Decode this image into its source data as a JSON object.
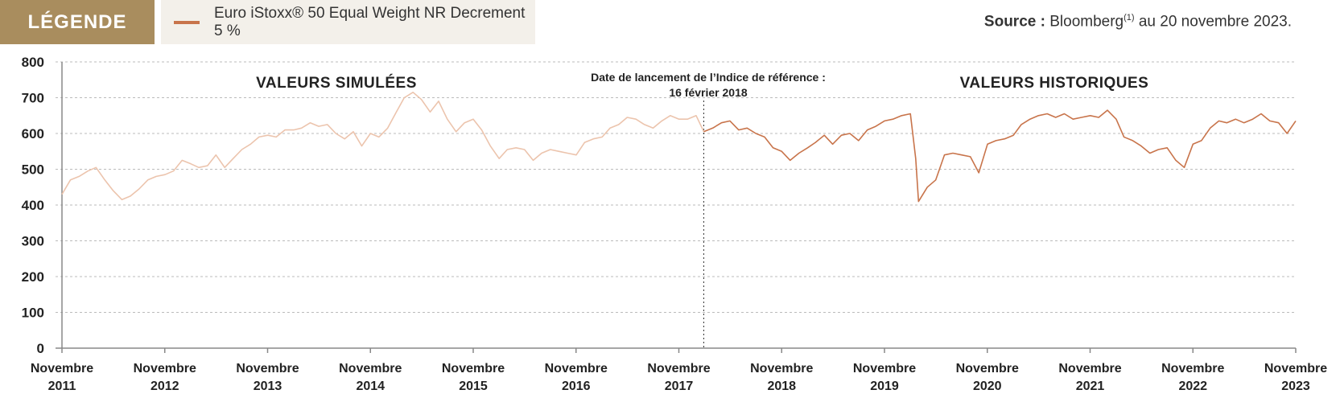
{
  "legend": {
    "tag": "LÉGENDE",
    "series_label": "Euro iStoxx® 50 Equal Weight NR Decrement 5 %",
    "series_color": "#c8744b",
    "simulated_color": "#ecc4ad"
  },
  "source": {
    "prefix": "Source :",
    "text": "Bloomberg",
    "sup": "(1)",
    "suffix": "au 20 novembre 2023."
  },
  "chart_data": {
    "type": "line",
    "title": "",
    "xlabel": "",
    "ylabel": "",
    "ylim": [
      0,
      800
    ],
    "y_ticks": [
      "800",
      "700",
      "600",
      "500",
      "400",
      "300",
      "200",
      "100",
      "0"
    ],
    "x_ticks": [
      {
        "month": "Novembre",
        "year": "2011"
      },
      {
        "month": "Novembre",
        "year": "2012"
      },
      {
        "month": "Novembre",
        "year": "2013"
      },
      {
        "month": "Novembre",
        "year": "2014"
      },
      {
        "month": "Novembre",
        "year": "2015"
      },
      {
        "month": "Novembre",
        "year": "2016"
      },
      {
        "month": "Novembre",
        "year": "2017"
      },
      {
        "month": "Novembre",
        "year": "2018"
      },
      {
        "month": "Novembre",
        "year": "2019"
      },
      {
        "month": "Novembre",
        "year": "2020"
      },
      {
        "month": "Novembre",
        "year": "2021"
      },
      {
        "month": "Novembre",
        "year": "2022"
      },
      {
        "month": "Novembre",
        "year": "2023"
      }
    ],
    "grid": true,
    "region_labels": {
      "simulated": "VALEURS SIMULÉES",
      "historical": "VALEURS HISTORIQUES"
    },
    "annotation": {
      "line1": "Date de lancement de l’Indice de référence :",
      "line2": "16 février 2018"
    },
    "launch_date": "2018-02-16",
    "series": [
      {
        "name": "Euro iStoxx® 50 Equal Weight NR Decrement 5 %",
        "points": [
          [
            "2011-11-20",
            430
          ],
          [
            "2011-12-20",
            470
          ],
          [
            "2012-01-20",
            480
          ],
          [
            "2012-02-20",
            495
          ],
          [
            "2012-03-20",
            505
          ],
          [
            "2012-04-20",
            470
          ],
          [
            "2012-05-20",
            440
          ],
          [
            "2012-06-20",
            415
          ],
          [
            "2012-07-20",
            425
          ],
          [
            "2012-08-20",
            445
          ],
          [
            "2012-09-20",
            470
          ],
          [
            "2012-10-20",
            480
          ],
          [
            "2012-11-20",
            485
          ],
          [
            "2012-12-20",
            495
          ],
          [
            "2013-01-20",
            525
          ],
          [
            "2013-02-20",
            515
          ],
          [
            "2013-03-20",
            505
          ],
          [
            "2013-04-20",
            510
          ],
          [
            "2013-05-20",
            540
          ],
          [
            "2013-06-20",
            505
          ],
          [
            "2013-07-20",
            530
          ],
          [
            "2013-08-20",
            555
          ],
          [
            "2013-09-20",
            570
          ],
          [
            "2013-10-20",
            590
          ],
          [
            "2013-11-20",
            595
          ],
          [
            "2013-12-20",
            590
          ],
          [
            "2014-01-20",
            610
          ],
          [
            "2014-02-20",
            610
          ],
          [
            "2014-03-20",
            615
          ],
          [
            "2014-04-20",
            630
          ],
          [
            "2014-05-20",
            620
          ],
          [
            "2014-06-20",
            625
          ],
          [
            "2014-07-20",
            600
          ],
          [
            "2014-08-20",
            585
          ],
          [
            "2014-09-20",
            605
          ],
          [
            "2014-10-20",
            565
          ],
          [
            "2014-11-20",
            600
          ],
          [
            "2014-12-20",
            590
          ],
          [
            "2015-01-20",
            615
          ],
          [
            "2015-02-20",
            660
          ],
          [
            "2015-03-20",
            700
          ],
          [
            "2015-04-20",
            715
          ],
          [
            "2015-05-20",
            695
          ],
          [
            "2015-06-20",
            660
          ],
          [
            "2015-07-20",
            690
          ],
          [
            "2015-08-20",
            640
          ],
          [
            "2015-09-20",
            605
          ],
          [
            "2015-10-20",
            630
          ],
          [
            "2015-11-20",
            640
          ],
          [
            "2015-12-20",
            610
          ],
          [
            "2016-01-20",
            565
          ],
          [
            "2016-02-20",
            530
          ],
          [
            "2016-03-20",
            555
          ],
          [
            "2016-04-20",
            560
          ],
          [
            "2016-05-20",
            555
          ],
          [
            "2016-06-20",
            525
          ],
          [
            "2016-07-20",
            545
          ],
          [
            "2016-08-20",
            555
          ],
          [
            "2016-09-20",
            550
          ],
          [
            "2016-10-20",
            545
          ],
          [
            "2016-11-20",
            540
          ],
          [
            "2016-12-20",
            575
          ],
          [
            "2017-01-20",
            585
          ],
          [
            "2017-02-20",
            590
          ],
          [
            "2017-03-20",
            615
          ],
          [
            "2017-04-20",
            625
          ],
          [
            "2017-05-20",
            645
          ],
          [
            "2017-06-20",
            640
          ],
          [
            "2017-07-20",
            625
          ],
          [
            "2017-08-20",
            615
          ],
          [
            "2017-09-20",
            635
          ],
          [
            "2017-10-20",
            650
          ],
          [
            "2017-11-20",
            640
          ],
          [
            "2017-12-20",
            640
          ],
          [
            "2018-01-20",
            650
          ],
          [
            "2018-02-16",
            605
          ],
          [
            "2018-03-20",
            615
          ],
          [
            "2018-04-20",
            630
          ],
          [
            "2018-05-20",
            635
          ],
          [
            "2018-06-20",
            610
          ],
          [
            "2018-07-20",
            615
          ],
          [
            "2018-08-20",
            600
          ],
          [
            "2018-09-20",
            590
          ],
          [
            "2018-10-20",
            560
          ],
          [
            "2018-11-20",
            550
          ],
          [
            "2018-12-20",
            525
          ],
          [
            "2019-01-20",
            545
          ],
          [
            "2019-02-20",
            560
          ],
          [
            "2019-03-20",
            575
          ],
          [
            "2019-04-20",
            595
          ],
          [
            "2019-05-20",
            570
          ],
          [
            "2019-06-20",
            595
          ],
          [
            "2019-07-20",
            600
          ],
          [
            "2019-08-20",
            580
          ],
          [
            "2019-09-20",
            610
          ],
          [
            "2019-10-20",
            620
          ],
          [
            "2019-11-20",
            635
          ],
          [
            "2019-12-20",
            640
          ],
          [
            "2020-01-20",
            650
          ],
          [
            "2020-02-20",
            655
          ],
          [
            "2020-03-10",
            530
          ],
          [
            "2020-03-20",
            410
          ],
          [
            "2020-04-20",
            450
          ],
          [
            "2020-05-20",
            470
          ],
          [
            "2020-06-20",
            540
          ],
          [
            "2020-07-20",
            545
          ],
          [
            "2020-08-20",
            540
          ],
          [
            "2020-09-20",
            535
          ],
          [
            "2020-10-20",
            490
          ],
          [
            "2020-11-20",
            570
          ],
          [
            "2020-12-20",
            580
          ],
          [
            "2021-01-20",
            585
          ],
          [
            "2021-02-20",
            595
          ],
          [
            "2021-03-20",
            625
          ],
          [
            "2021-04-20",
            640
          ],
          [
            "2021-05-20",
            650
          ],
          [
            "2021-06-20",
            655
          ],
          [
            "2021-07-20",
            645
          ],
          [
            "2021-08-20",
            655
          ],
          [
            "2021-09-20",
            640
          ],
          [
            "2021-10-20",
            645
          ],
          [
            "2021-11-20",
            650
          ],
          [
            "2021-12-20",
            645
          ],
          [
            "2022-01-20",
            665
          ],
          [
            "2022-02-20",
            640
          ],
          [
            "2022-03-20",
            590
          ],
          [
            "2022-04-20",
            580
          ],
          [
            "2022-05-20",
            565
          ],
          [
            "2022-06-20",
            545
          ],
          [
            "2022-07-20",
            555
          ],
          [
            "2022-08-20",
            560
          ],
          [
            "2022-09-20",
            525
          ],
          [
            "2022-10-20",
            505
          ],
          [
            "2022-11-20",
            570
          ],
          [
            "2022-12-20",
            580
          ],
          [
            "2023-01-20",
            615
          ],
          [
            "2023-02-20",
            635
          ],
          [
            "2023-03-20",
            630
          ],
          [
            "2023-04-20",
            640
          ],
          [
            "2023-05-20",
            630
          ],
          [
            "2023-06-20",
            640
          ],
          [
            "2023-07-20",
            655
          ],
          [
            "2023-08-20",
            635
          ],
          [
            "2023-09-20",
            630
          ],
          [
            "2023-10-20",
            600
          ],
          [
            "2023-11-20",
            635
          ]
        ]
      }
    ]
  }
}
